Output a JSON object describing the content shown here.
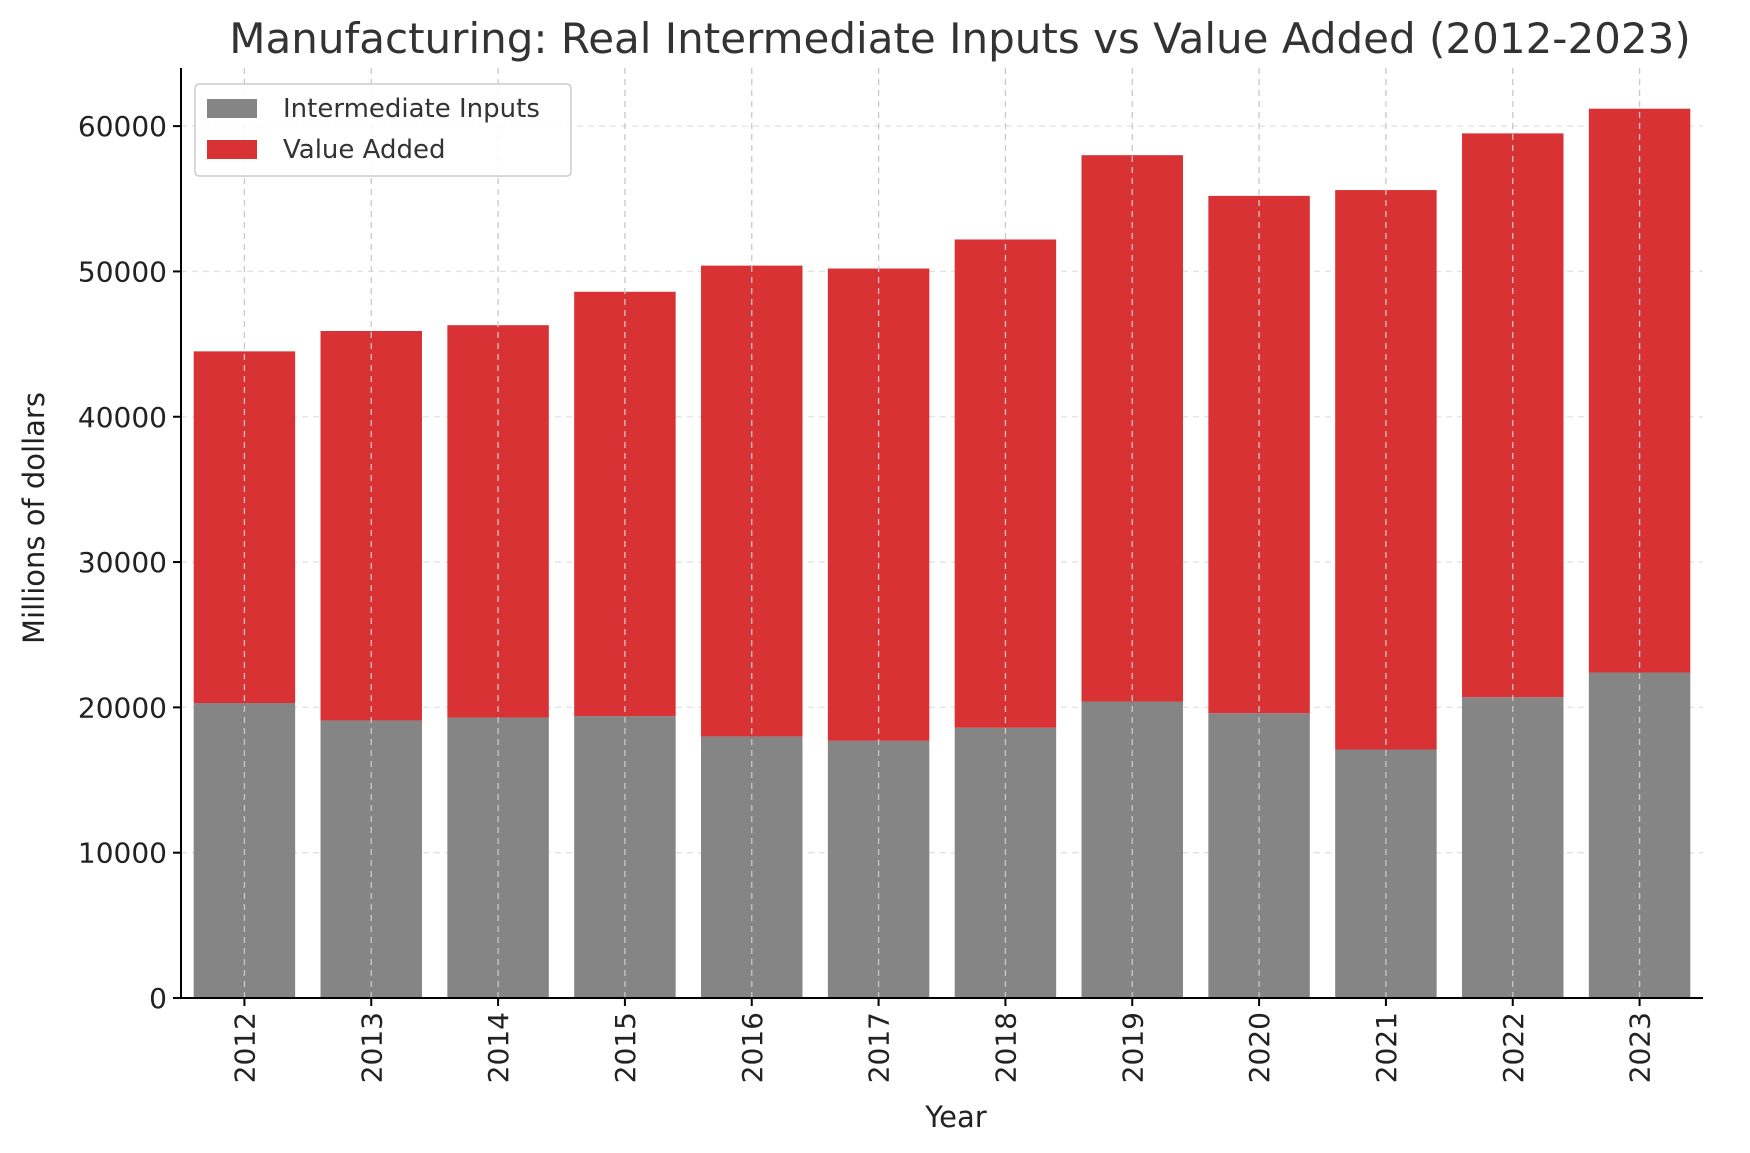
{
  "chart_data": {
    "type": "bar",
    "stacked": true,
    "title": "Manufacturing: Real Intermediate Inputs vs Value Added (2012-2023)",
    "xlabel": "Year",
    "ylabel": "Millions of dollars",
    "categories": [
      "2012",
      "2013",
      "2014",
      "2015",
      "2016",
      "2017",
      "2018",
      "2019",
      "2020",
      "2021",
      "2022",
      "2023"
    ],
    "series": [
      {
        "name": "Intermediate Inputs",
        "color": "#858585",
        "values": [
          20300,
          19100,
          19300,
          19400,
          18000,
          17700,
          18600,
          20400,
          19600,
          17100,
          20700,
          22400
        ]
      },
      {
        "name": "Value Added",
        "color": "#d93235",
        "values": [
          24200,
          26800,
          27000,
          29200,
          32400,
          32500,
          33600,
          37600,
          35600,
          38500,
          38800,
          38800
        ]
      }
    ],
    "ylim": [
      0,
      64000
    ],
    "yticks": [
      0,
      10000,
      20000,
      30000,
      40000,
      50000,
      60000
    ],
    "grid": true,
    "legend_position": "top-left"
  }
}
